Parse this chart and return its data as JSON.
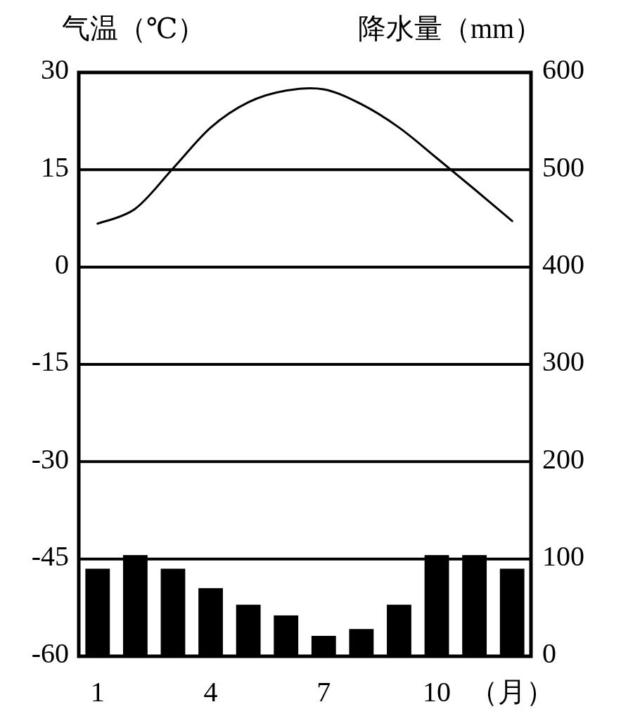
{
  "chart_data": {
    "type": "bar",
    "ylabel": "气温（℃）",
    "y2label": "降水量（mm）",
    "xlabel": "（月）",
    "categories": [
      "1",
      null,
      null,
      "4",
      null,
      null,
      "7",
      null,
      null,
      "10",
      null,
      null
    ],
    "ylim": [
      -60,
      30
    ],
    "yticks": [
      -60,
      -45,
      -30,
      -15,
      0,
      15,
      30
    ],
    "y2lim": [
      0,
      600
    ],
    "y2ticks": [
      0,
      100,
      200,
      300,
      400,
      500,
      600
    ],
    "grid": "y",
    "series": [
      {
        "axis": "y2",
        "color": "#000000",
        "values": [
          90,
          104,
          90,
          70,
          53,
          42,
          21,
          28,
          53,
          104,
          104,
          90
        ]
      },
      {
        "type": "line",
        "axis": "y",
        "color": "#000000",
        "values": [
          6.7,
          9.0,
          15.2,
          21.5,
          25.4,
          27.2,
          27.4,
          25.1,
          21.5,
          16.8,
          12.0,
          7.1
        ]
      }
    ]
  }
}
